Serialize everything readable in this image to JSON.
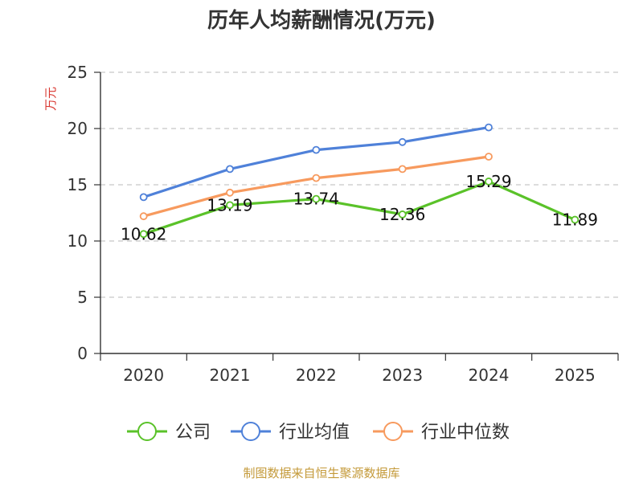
{
  "chart_data": {
    "type": "line",
    "title": "历年人均薪酬情况(万元)",
    "ylabel": "万元",
    "xlabel": "",
    "ylim": [
      0,
      25
    ],
    "yticks": [
      0,
      5,
      10,
      15,
      20,
      25
    ],
    "categories": [
      "2020",
      "2021",
      "2022",
      "2023",
      "2024",
      "2025"
    ],
    "grid": true,
    "legend_position": "bottom",
    "series": [
      {
        "name": "公司",
        "color": "#5ac229",
        "values": [
          10.62,
          13.19,
          13.74,
          12.36,
          15.29,
          11.89
        ],
        "labels": [
          "10.62",
          "13.19",
          "13.74",
          "12.36",
          "15.29",
          "11.89"
        ]
      },
      {
        "name": "行业均值",
        "color": "#4f81d9",
        "values": [
          13.9,
          16.4,
          18.1,
          18.8,
          20.1,
          null
        ]
      },
      {
        "name": "行业中位数",
        "color": "#f79a5e",
        "values": [
          12.2,
          14.3,
          15.6,
          16.4,
          17.5,
          null
        ]
      }
    ],
    "ylabel_color": "#d9362f",
    "source": "制图数据来自恒生聚源数据库",
    "source_color": "#c49a3a"
  }
}
